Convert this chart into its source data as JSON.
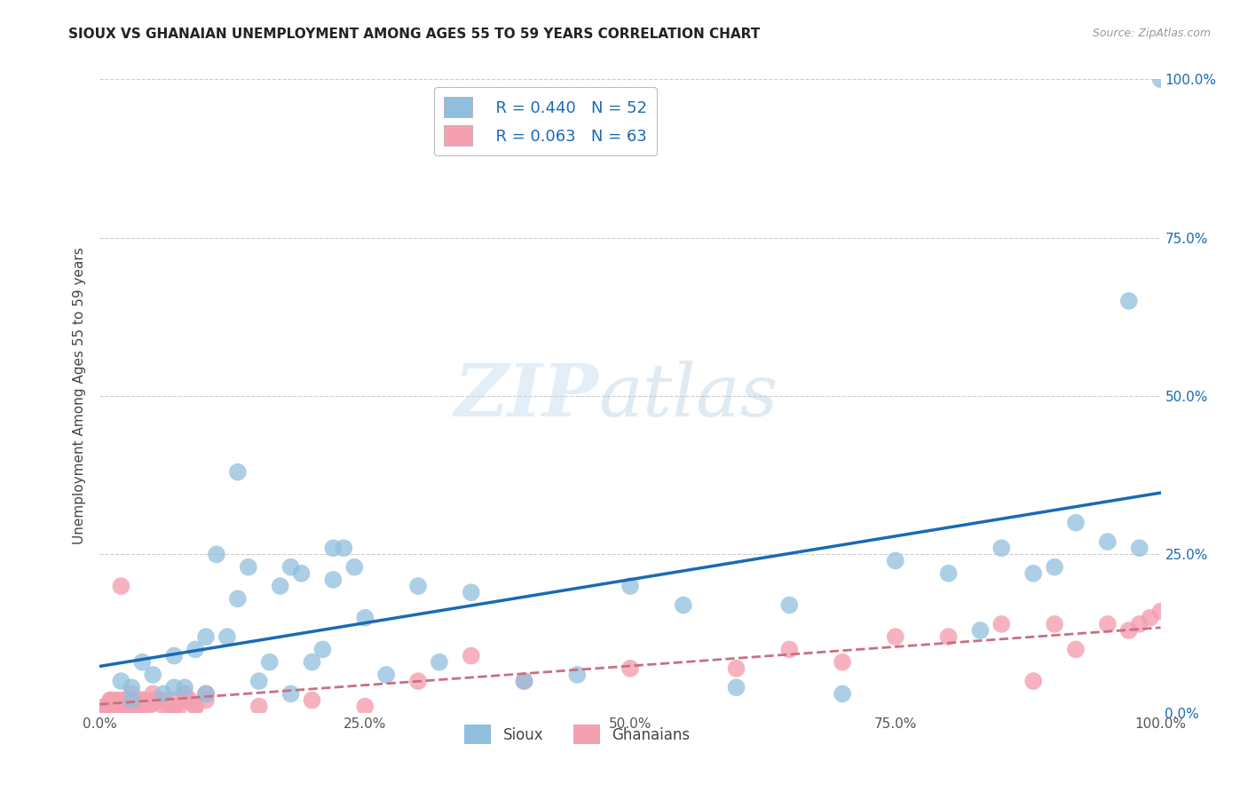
{
  "title": "SIOUX VS GHANAIAN UNEMPLOYMENT AMONG AGES 55 TO 59 YEARS CORRELATION CHART",
  "source": "Source: ZipAtlas.com",
  "ylabel": "Unemployment Among Ages 55 to 59 years",
  "xlim": [
    0,
    1.0
  ],
  "ylim": [
    0,
    1.0
  ],
  "xticks": [
    0.0,
    0.25,
    0.5,
    0.75,
    1.0
  ],
  "xticklabels": [
    "0.0%",
    "25.0%",
    "50.0%",
    "75.0%",
    "100.0%"
  ],
  "yticks": [
    0.0,
    0.25,
    0.5,
    0.75,
    1.0
  ],
  "right_yticklabels": [
    "0.0%",
    "25.0%",
    "50.0%",
    "75.0%",
    "100.0%"
  ],
  "legend_R": [
    0.44,
    0.063
  ],
  "legend_N": [
    52,
    63
  ],
  "sioux_color": "#90bfde",
  "ghanaian_color": "#f4a0b0",
  "sioux_line_color": "#1a6ab5",
  "ghanaian_line_color": "#c87080",
  "sioux_x": [
    0.02,
    0.03,
    0.04,
    0.05,
    0.06,
    0.07,
    0.08,
    0.09,
    0.1,
    0.11,
    0.12,
    0.13,
    0.14,
    0.15,
    0.16,
    0.17,
    0.18,
    0.19,
    0.2,
    0.21,
    0.22,
    0.23,
    0.24,
    0.25,
    0.27,
    0.3,
    0.32,
    0.35,
    0.4,
    0.45,
    0.5,
    0.55,
    0.6,
    0.65,
    0.7,
    0.75,
    0.8,
    0.83,
    0.85,
    0.88,
    0.9,
    0.92,
    0.95,
    0.97,
    0.98,
    1.0,
    0.03,
    0.07,
    0.1,
    0.13,
    0.18,
    0.22
  ],
  "sioux_y": [
    0.05,
    0.02,
    0.08,
    0.06,
    0.03,
    0.09,
    0.04,
    0.1,
    0.03,
    0.25,
    0.12,
    0.38,
    0.23,
    0.05,
    0.08,
    0.2,
    0.23,
    0.22,
    0.08,
    0.1,
    0.26,
    0.26,
    0.23,
    0.15,
    0.06,
    0.2,
    0.08,
    0.19,
    0.05,
    0.06,
    0.2,
    0.17,
    0.04,
    0.17,
    0.03,
    0.24,
    0.22,
    0.13,
    0.26,
    0.22,
    0.23,
    0.3,
    0.27,
    0.65,
    0.26,
    1.0,
    0.04,
    0.04,
    0.12,
    0.18,
    0.03,
    0.21
  ],
  "ghanaian_x": [
    0.0,
    0.005,
    0.01,
    0.01,
    0.015,
    0.02,
    0.02,
    0.025,
    0.03,
    0.03,
    0.035,
    0.04,
    0.04,
    0.045,
    0.05,
    0.05,
    0.055,
    0.06,
    0.065,
    0.07,
    0.07,
    0.075,
    0.08,
    0.085,
    0.09,
    0.1,
    0.01,
    0.02,
    0.03,
    0.04,
    0.05,
    0.06,
    0.07,
    0.08,
    0.09,
    0.1,
    0.02,
    0.03,
    0.04,
    0.05,
    0.4,
    0.5,
    0.6,
    0.65,
    0.7,
    0.75,
    0.8,
    0.85,
    0.88,
    0.9,
    0.92,
    0.95,
    0.97,
    0.98,
    0.99,
    1.0,
    0.15,
    0.2,
    0.25,
    0.3,
    0.35,
    0.005,
    0.015
  ],
  "ghanaian_y": [
    0.0,
    0.01,
    0.02,
    0.01,
    0.005,
    0.01,
    0.02,
    0.02,
    0.01,
    0.03,
    0.01,
    0.02,
    0.01,
    0.01,
    0.015,
    0.02,
    0.02,
    0.01,
    0.01,
    0.02,
    0.01,
    0.01,
    0.03,
    0.02,
    0.01,
    0.03,
    0.02,
    0.01,
    0.02,
    0.015,
    0.015,
    0.02,
    0.01,
    0.02,
    0.01,
    0.02,
    0.2,
    0.01,
    0.02,
    0.03,
    0.05,
    0.07,
    0.07,
    0.1,
    0.08,
    0.12,
    0.12,
    0.14,
    0.05,
    0.14,
    0.1,
    0.14,
    0.13,
    0.14,
    0.15,
    0.16,
    0.01,
    0.02,
    0.01,
    0.05,
    0.09,
    0.01,
    0.02
  ]
}
